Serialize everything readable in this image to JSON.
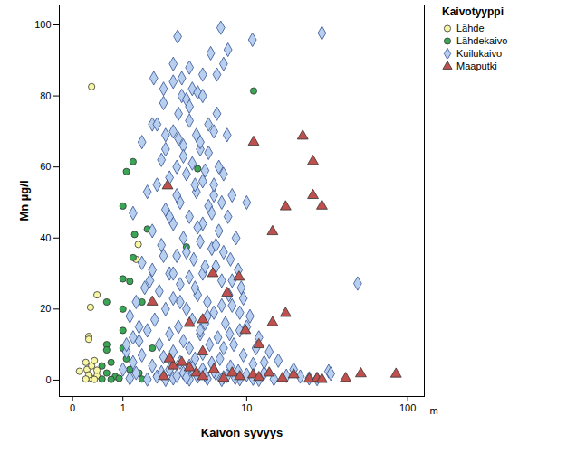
{
  "chart_data": {
    "type": "scatter",
    "x_label": "Kaivon syvyys",
    "y_label": "Mn µg/l",
    "annotations": [
      "m"
    ],
    "legend_title": "Kaivotyyppi",
    "legend": "right",
    "log": "x",
    "grid": false,
    "xlim": [
      -0.2,
      126
    ],
    "xticks": [
      0,
      1,
      10,
      100
    ],
    "ylim": [
      -4.6,
      105.6
    ],
    "yticks": [
      0,
      20,
      40,
      60,
      80,
      100
    ],
    "series": [
      {
        "name": "Lähde",
        "color": "#f7f7a3",
        "marker": "circle",
        "values": [
          [
            0.3,
            82.6
          ],
          [
            0.28,
            20.5
          ],
          [
            0.25,
            12.3
          ],
          [
            0.25,
            11.5
          ],
          [
            0.4,
            24
          ],
          [
            0.1,
            2.5
          ],
          [
            0.2,
            5
          ],
          [
            0.22,
            3
          ],
          [
            0.3,
            4
          ],
          [
            0.35,
            5.5
          ],
          [
            0.4,
            1.2
          ],
          [
            0.3,
            0.5
          ],
          [
            0.25,
            1.5
          ],
          [
            0.35,
            0.2
          ],
          [
            0.2,
            0.3
          ],
          [
            0.4,
            2.8
          ],
          [
            1.47,
            38.2
          ],
          [
            1.4,
            34
          ]
        ]
      },
      {
        "name": "Lähdekaivo",
        "color": "#3aa655",
        "marker": "circle",
        "values": [
          [
            1.1,
            58.7
          ],
          [
            1.3,
            61.5
          ],
          [
            1.0,
            49
          ],
          [
            1.35,
            41
          ],
          [
            1.3,
            34.5
          ],
          [
            1.0,
            28.5
          ],
          [
            1.2,
            27.8
          ],
          [
            0.6,
            22
          ],
          [
            1.8,
            42.5
          ],
          [
            1.6,
            22
          ],
          [
            4.6,
            59.5
          ],
          [
            11.1,
            81.4
          ],
          [
            0.6,
            10
          ],
          [
            0.6,
            8.5
          ],
          [
            0.7,
            5
          ],
          [
            0.5,
            4
          ],
          [
            0.6,
            2
          ],
          [
            0.8,
            1
          ],
          [
            0.5,
            0.3
          ],
          [
            0.7,
            0.2
          ],
          [
            1.0,
            20
          ],
          [
            1.0,
            14
          ],
          [
            1.0,
            9
          ],
          [
            1.1,
            6
          ],
          [
            1.2,
            3
          ],
          [
            0.9,
            0.5
          ],
          [
            1.5,
            2
          ],
          [
            2,
            9
          ],
          [
            1.6,
            0.3
          ],
          [
            3.8,
            37.5
          ],
          [
            2.2,
            1.2
          ]
        ]
      },
      {
        "name": "Kuilukaivo",
        "color": "#b8cff0",
        "marker": "diamond",
        "values": [
          [
            6.7,
            99.2
          ],
          [
            30,
            97.7
          ],
          [
            3.25,
            96.7
          ],
          [
            10.9,
            95.8
          ],
          [
            7.5,
            93
          ],
          [
            5.7,
            92
          ],
          [
            2.06,
            85
          ],
          [
            49.7,
            27.2
          ],
          [
            3,
            89
          ],
          [
            4,
            88
          ],
          [
            3.5,
            85
          ],
          [
            5,
            86
          ],
          [
            6.3,
            86
          ],
          [
            7,
            89
          ],
          [
            3.5,
            80
          ],
          [
            4.2,
            82
          ],
          [
            3.8,
            79
          ],
          [
            2.5,
            78
          ],
          [
            3.3,
            75
          ],
          [
            2,
            72
          ],
          [
            2.2,
            72
          ],
          [
            4,
            73
          ],
          [
            5.5,
            72
          ],
          [
            3,
            70
          ],
          [
            4.5,
            69
          ],
          [
            6,
            70
          ],
          [
            7.4,
            69
          ],
          [
            1.6,
            67
          ],
          [
            2.6,
            65
          ],
          [
            3.6,
            66
          ],
          [
            4.8,
            65
          ],
          [
            5.5,
            64
          ],
          [
            2.4,
            62
          ],
          [
            3.2,
            60
          ],
          [
            4.2,
            61
          ],
          [
            6.5,
            60
          ],
          [
            7,
            58
          ],
          [
            3.8,
            58
          ],
          [
            2.8,
            57
          ],
          [
            5,
            56
          ],
          [
            2.2,
            55
          ],
          [
            1.8,
            53
          ],
          [
            4.5,
            53
          ],
          [
            6,
            52
          ],
          [
            8,
            52
          ],
          [
            10,
            50
          ],
          [
            3.4,
            50
          ],
          [
            5.5,
            49
          ],
          [
            2.6,
            48
          ],
          [
            1.3,
            47
          ],
          [
            4,
            46
          ],
          [
            7.5,
            46
          ],
          [
            3,
            44
          ],
          [
            5,
            44
          ],
          [
            2,
            42
          ],
          [
            6.5,
            42
          ],
          [
            3.6,
            40
          ],
          [
            4.8,
            39
          ],
          [
            8.5,
            40
          ],
          [
            2.4,
            38
          ],
          [
            5.8,
            37
          ],
          [
            7,
            36
          ],
          [
            3.2,
            35
          ],
          [
            4.3,
            34
          ],
          [
            1.6,
            33
          ],
          [
            6.2,
            32
          ],
          [
            8.8,
            31
          ],
          [
            2.8,
            30
          ],
          [
            4,
            29
          ],
          [
            5,
            30
          ],
          [
            1.9,
            28
          ],
          [
            3.4,
            27
          ],
          [
            6.8,
            28
          ],
          [
            9.2,
            26
          ],
          [
            2.3,
            25
          ],
          [
            4.6,
            24
          ],
          [
            7.6,
            24
          ],
          [
            3,
            23
          ],
          [
            5.4,
            22
          ],
          [
            1.4,
            22
          ],
          [
            8,
            21
          ],
          [
            2.6,
            20
          ],
          [
            3.8,
            20
          ],
          [
            6,
            19
          ],
          [
            10.5,
            18
          ],
          [
            1.2,
            18
          ],
          [
            2.1,
            17
          ],
          [
            4.2,
            17
          ],
          [
            5.2,
            16
          ],
          [
            7.2,
            16
          ],
          [
            3.3,
            15
          ],
          [
            9,
            14
          ],
          [
            1.8,
            14
          ],
          [
            2.8,
            13
          ],
          [
            4.8,
            13
          ],
          [
            6.4,
            12
          ],
          [
            12,
            12
          ],
          [
            1.5,
            11
          ],
          [
            3.6,
            11
          ],
          [
            5.6,
            10
          ],
          [
            8.2,
            10
          ],
          [
            2.3,
            10
          ],
          [
            4,
            9
          ],
          [
            7,
            9
          ],
          [
            14,
            8
          ],
          [
            1.1,
            8
          ],
          [
            3,
            8
          ],
          [
            5,
            7.5
          ],
          [
            9.5,
            7
          ],
          [
            1.6,
            7
          ],
          [
            2.5,
            6.5
          ],
          [
            4.4,
            6
          ],
          [
            6.6,
            6
          ],
          [
            16,
            5.5
          ],
          [
            1.3,
            5
          ],
          [
            3.4,
            5
          ],
          [
            5.8,
            4.8
          ],
          [
            11,
            4.5
          ],
          [
            2,
            4
          ],
          [
            4,
            4
          ],
          [
            7.8,
            3.8
          ],
          [
            20,
            3
          ],
          [
            1,
            3
          ],
          [
            2.8,
            3
          ],
          [
            5,
            3
          ],
          [
            8.8,
            2.5
          ],
          [
            13,
            2
          ],
          [
            1.4,
            2
          ],
          [
            3.6,
            2
          ],
          [
            6.2,
            1.8
          ],
          [
            10,
            1.5
          ],
          [
            18,
            1.2
          ],
          [
            2.2,
            1
          ],
          [
            4.6,
            1
          ],
          [
            7,
            0.8
          ],
          [
            25,
            0.5
          ],
          [
            1.2,
            0.5
          ],
          [
            3,
            0.5
          ],
          [
            5.4,
            0.4
          ],
          [
            9,
            0.3
          ],
          [
            15,
            0.3
          ],
          [
            1.8,
            0.2
          ],
          [
            4,
            0.2
          ],
          [
            6.8,
            0.1
          ],
          [
            12,
            0.1
          ],
          [
            33,
            2.5
          ],
          [
            34,
            1.8
          ],
          [
            22,
            1
          ],
          [
            28,
            0.3
          ],
          [
            2.6,
            0.1
          ],
          [
            3.8,
            0.8
          ],
          [
            5.2,
            1.5
          ],
          [
            6,
            2.5
          ],
          [
            4.2,
            3.5
          ],
          [
            3.2,
            1.2
          ],
          [
            2.4,
            2.2
          ],
          [
            7.4,
            1.2
          ],
          [
            8.4,
            0.6
          ],
          [
            11,
            0.4
          ],
          [
            4.8,
            14
          ],
          [
            5.4,
            18
          ],
          [
            3.4,
            22
          ],
          [
            4.4,
            26
          ],
          [
            3,
            30
          ],
          [
            5.2,
            32
          ],
          [
            3.8,
            36
          ],
          [
            6.2,
            38
          ],
          [
            4.6,
            43
          ],
          [
            2.8,
            46
          ],
          [
            5.8,
            47
          ],
          [
            3.2,
            52
          ],
          [
            4.4,
            55
          ],
          [
            5.2,
            59
          ],
          [
            3.6,
            63
          ],
          [
            4.8,
            67
          ],
          [
            2.6,
            69
          ],
          [
            3.3,
            68
          ],
          [
            4,
            77
          ],
          [
            3,
            84
          ],
          [
            2.5,
            82
          ],
          [
            4.6,
            81
          ],
          [
            9.5,
            23
          ],
          [
            10,
            15
          ],
          [
            11.5,
            9
          ],
          [
            13,
            5
          ],
          [
            7.7,
            13
          ],
          [
            9,
            19
          ],
          [
            6.8,
            21
          ],
          [
            2.5,
            35
          ],
          [
            2,
            31
          ],
          [
            1.7,
            26
          ],
          [
            1.5,
            15
          ],
          [
            1.3,
            12
          ],
          [
            1.1,
            10
          ],
          [
            6.3,
            75
          ],
          [
            5,
            80
          ],
          [
            6,
            55
          ],
          [
            6.8,
            50
          ],
          [
            7.8,
            34
          ],
          [
            8,
            28
          ]
        ]
      },
      {
        "name": "Maaputki",
        "color": "#c0504d",
        "marker": "triangle",
        "values": [
          [
            2.7,
            54.7
          ],
          [
            11.1,
            67
          ],
          [
            22.8,
            68.7
          ],
          [
            26.4,
            61.6
          ],
          [
            26.4,
            52
          ],
          [
            30,
            49
          ],
          [
            17.8,
            48.8
          ],
          [
            14.7,
            41.8
          ],
          [
            8.9,
            29
          ],
          [
            17.8,
            18.8
          ],
          [
            14.7,
            16.2
          ],
          [
            9.8,
            14
          ],
          [
            7.4,
            24.5
          ],
          [
            5.9,
            30
          ],
          [
            12,
            10
          ],
          [
            2,
            22
          ],
          [
            2.5,
            1
          ],
          [
            3,
            4
          ],
          [
            3.5,
            5
          ],
          [
            4.5,
            2
          ],
          [
            5,
            1
          ],
          [
            6,
            3
          ],
          [
            7,
            0.5
          ],
          [
            8,
            2
          ],
          [
            9,
            1
          ],
          [
            11,
            1.5
          ],
          [
            12,
            0.8
          ],
          [
            14,
            2
          ],
          [
            17,
            0.5
          ],
          [
            20,
            1.5
          ],
          [
            25,
            0.3
          ],
          [
            28,
            0.5
          ],
          [
            30,
            0.2
          ],
          [
            42,
            0.5
          ],
          [
            52,
            1.8
          ],
          [
            85,
            1.7
          ],
          [
            4,
            16
          ],
          [
            5,
            17
          ],
          [
            4,
            3.5
          ],
          [
            5,
            8
          ],
          [
            2.8,
            6
          ]
        ]
      }
    ]
  }
}
